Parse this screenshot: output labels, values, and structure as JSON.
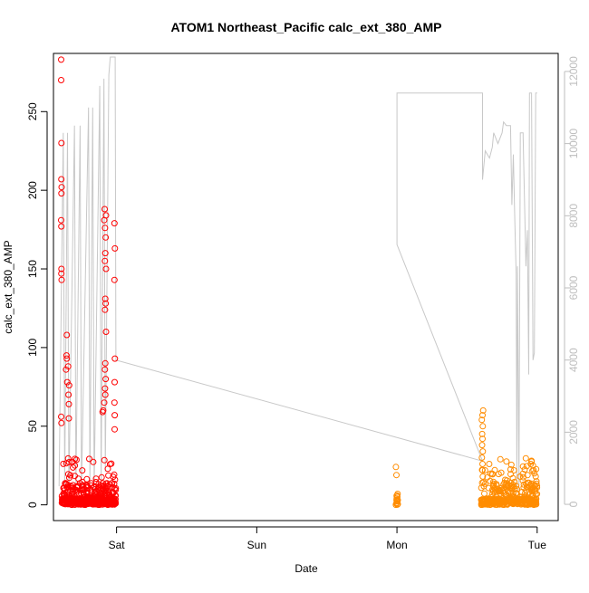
{
  "chart_data": {
    "type": "scatter",
    "title": "ATOM1 Northeast_Pacific calc_ext_380_AMP",
    "xlabel": "Date",
    "ylabel": "calc_ext_380_AMP",
    "xlim_days": [
      -0.45,
      3.15
    ],
    "ylim": [
      -10,
      287
    ],
    "y_ticks": [
      0,
      50,
      100,
      150,
      200,
      250
    ],
    "x_ticks": [
      {
        "label": "Sat",
        "day": 0
      },
      {
        "label": "Sun",
        "day": 1
      },
      {
        "label": "Mon",
        "day": 2
      },
      {
        "label": "Tue",
        "day": 3
      }
    ],
    "secondary_axis": {
      "ylim": [
        -450,
        12500
      ],
      "ticks": [
        0,
        2000,
        4000,
        6000,
        8000,
        10000,
        12000
      ],
      "color": "#bebebe"
    },
    "colors": {
      "red": "#ff0000",
      "orange": "#ff8c00",
      "line": "#c8c8c8",
      "axis": "#000000"
    },
    "series": [
      {
        "color": "red",
        "x_range": [
          -0.39,
          0.0
        ],
        "spike_points": [
          [
            -0.395,
            283
          ],
          [
            -0.395,
            270
          ],
          [
            -0.393,
            230
          ],
          [
            -0.394,
            207
          ],
          [
            -0.392,
            202
          ],
          [
            -0.393,
            198
          ],
          [
            -0.395,
            181
          ],
          [
            -0.394,
            177
          ],
          [
            -0.393,
            150
          ],
          [
            -0.394,
            147
          ],
          [
            -0.392,
            143
          ],
          [
            -0.355,
            108
          ],
          [
            -0.357,
            95
          ],
          [
            -0.355,
            93
          ],
          [
            -0.36,
            86
          ],
          [
            -0.345,
            88
          ],
          [
            -0.352,
            78
          ],
          [
            -0.338,
            76
          ],
          [
            -0.343,
            70
          ],
          [
            -0.34,
            64
          ],
          [
            -0.34,
            55
          ],
          [
            -0.395,
            56
          ],
          [
            -0.393,
            52
          ],
          [
            -0.085,
            188
          ],
          [
            -0.088,
            181
          ],
          [
            -0.075,
            184
          ],
          [
            -0.082,
            176
          ],
          [
            -0.078,
            170
          ],
          [
            -0.08,
            160
          ],
          [
            -0.083,
            155
          ],
          [
            -0.075,
            150
          ],
          [
            -0.08,
            131
          ],
          [
            -0.078,
            128
          ],
          [
            -0.082,
            124
          ],
          [
            -0.075,
            110
          ],
          [
            -0.08,
            90
          ],
          [
            -0.083,
            86
          ],
          [
            -0.078,
            80
          ],
          [
            -0.082,
            74
          ],
          [
            -0.08,
            70
          ],
          [
            -0.088,
            65
          ],
          [
            -0.095,
            60
          ],
          [
            -0.1,
            59
          ],
          [
            -0.015,
            179
          ],
          [
            -0.012,
            163
          ],
          [
            -0.015,
            143
          ],
          [
            -0.012,
            93
          ],
          [
            -0.014,
            78
          ],
          [
            -0.015,
            65
          ],
          [
            -0.013,
            57
          ],
          [
            -0.014,
            48
          ]
        ]
      },
      {
        "color": "orange",
        "x_range": [
          1.99,
          3.0
        ],
        "spike_points": [
          [
            2.615,
            60
          ],
          [
            2.61,
            57
          ],
          [
            2.605,
            54
          ],
          [
            2.612,
            50
          ],
          [
            2.608,
            45
          ],
          [
            2.61,
            42
          ],
          [
            2.607,
            38
          ],
          [
            2.612,
            34
          ],
          [
            2.606,
            30
          ],
          [
            2.61,
            26
          ],
          [
            2.61,
            22
          ],
          [
            2.612,
            18
          ],
          [
            2.608,
            14
          ],
          [
            2.96,
            28
          ],
          [
            2.955,
            26
          ],
          [
            2.97,
            25
          ],
          [
            2.975,
            22
          ],
          [
            2.98,
            20
          ],
          [
            2.99,
            18
          ],
          [
            2.995,
            15
          ],
          [
            2.985,
            12
          ],
          [
            2.965,
            10
          ],
          [
            2.82,
            12
          ],
          [
            2.84,
            10
          ],
          [
            2.76,
            13
          ],
          [
            2.72,
            9
          ],
          [
            2.7,
            8
          ],
          [
            2.005,
            7
          ],
          [
            2.0,
            6
          ],
          [
            2.003,
            5
          ],
          [
            1.998,
            4
          ],
          [
            2.006,
            3
          ]
        ]
      }
    ],
    "secondary_line": {
      "color": "line",
      "points": [
        [
          -0.41,
          500
        ],
        [
          -0.38,
          10300
        ],
        [
          -0.37,
          500
        ],
        [
          -0.35,
          10300
        ],
        [
          -0.34,
          400
        ],
        [
          -0.3,
          10500
        ],
        [
          -0.29,
          500
        ],
        [
          -0.26,
          10500
        ],
        [
          -0.25,
          400
        ],
        [
          -0.2,
          11000
        ],
        [
          -0.19,
          500
        ],
        [
          -0.17,
          11000
        ],
        [
          -0.16,
          400
        ],
        [
          -0.12,
          11600
        ],
        [
          -0.11,
          500
        ],
        [
          -0.09,
          11800
        ],
        [
          -0.08,
          900
        ],
        [
          -0.055,
          11900
        ],
        [
          -0.045,
          12400
        ],
        [
          -0.01,
          12400
        ],
        [
          -0.005,
          4000
        ],
        [
          2.61,
          1200
        ],
        [
          2.0,
          7200
        ],
        [
          2.0,
          11400
        ],
        [
          2.61,
          11400
        ],
        [
          2.61,
          9000
        ],
        [
          2.63,
          9800
        ],
        [
          2.66,
          9600
        ],
        [
          2.68,
          9900
        ],
        [
          2.69,
          10300
        ],
        [
          2.72,
          10000
        ],
        [
          2.75,
          10300
        ],
        [
          2.76,
          10600
        ],
        [
          2.78,
          10500
        ],
        [
          2.81,
          10500
        ],
        [
          2.82,
          8300
        ],
        [
          2.83,
          9700
        ],
        [
          2.84,
          8000
        ],
        [
          2.85,
          6400
        ],
        [
          2.855,
          500
        ],
        [
          2.86,
          6600
        ],
        [
          2.87,
          400
        ],
        [
          2.88,
          10300
        ],
        [
          2.9,
          10300
        ],
        [
          2.9,
          10200
        ],
        [
          2.92,
          6600
        ],
        [
          2.93,
          7600
        ],
        [
          2.94,
          3600
        ],
        [
          2.945,
          11400
        ],
        [
          2.96,
          11400
        ],
        [
          2.97,
          4000
        ],
        [
          2.98,
          4200
        ],
        [
          2.99,
          11400
        ],
        [
          3.0,
          11400
        ]
      ]
    },
    "dense_clusters": [
      {
        "series": "red",
        "x_start": -0.39,
        "x_end": -0.005,
        "count": 520,
        "seed": 7
      },
      {
        "series": "orange",
        "x_start": 2.6,
        "x_end": 3.0,
        "count": 380,
        "seed": 13
      },
      {
        "series": "orange",
        "x_start": 1.99,
        "x_end": 2.01,
        "count": 12,
        "seed": 21
      }
    ]
  }
}
